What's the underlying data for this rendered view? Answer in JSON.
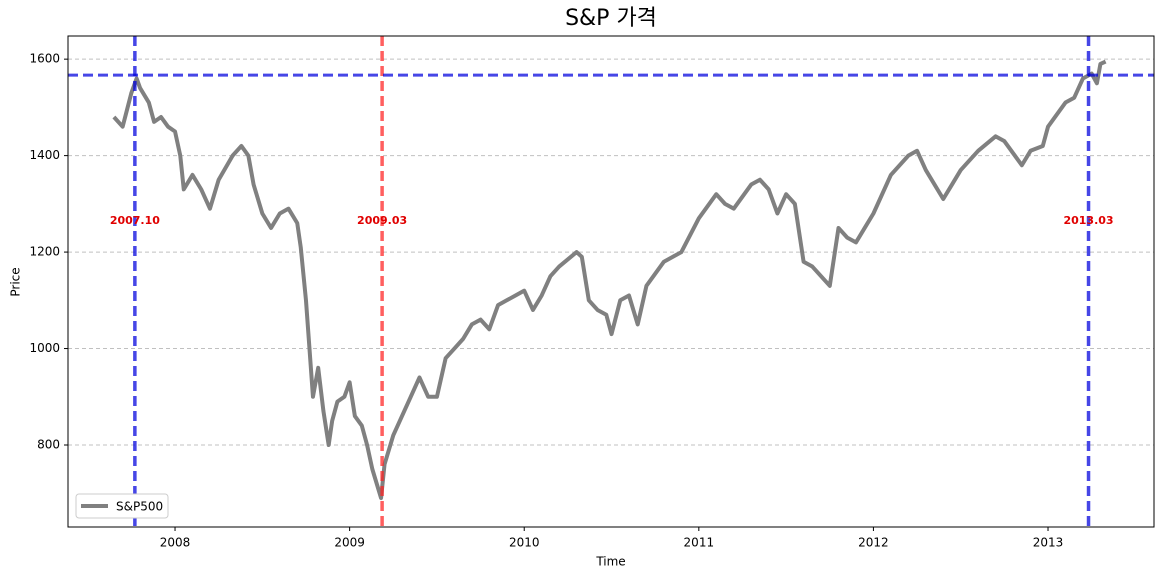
{
  "chart_data": {
    "type": "line",
    "title": "S&P 가격",
    "x_label": "Time",
    "y_label": "Price",
    "series": [
      {
        "name": "S&P500",
        "color": "#808080",
        "x": [
          2007.65,
          2007.7,
          2007.75,
          2007.78,
          2007.8,
          2007.85,
          2007.88,
          2007.92,
          2007.96,
          2008.0,
          2008.03,
          2008.05,
          2008.1,
          2008.15,
          2008.2,
          2008.25,
          2008.33,
          2008.38,
          2008.42,
          2008.45,
          2008.5,
          2008.55,
          2008.6,
          2008.65,
          2008.7,
          2008.72,
          2008.75,
          2008.77,
          2008.79,
          2008.82,
          2008.85,
          2008.88,
          2008.9,
          2008.93,
          2008.97,
          2009.0,
          2009.03,
          2009.07,
          2009.1,
          2009.13,
          2009.18,
          2009.2,
          2009.25,
          2009.3,
          2009.35,
          2009.4,
          2009.45,
          2009.5,
          2009.55,
          2009.6,
          2009.65,
          2009.7,
          2009.75,
          2009.8,
          2009.85,
          2009.9,
          2009.95,
          2010.0,
          2010.05,
          2010.1,
          2010.15,
          2010.2,
          2010.3,
          2010.33,
          2010.37,
          2010.42,
          2010.47,
          2010.5,
          2010.55,
          2010.6,
          2010.65,
          2010.7,
          2010.8,
          2010.9,
          2011.0,
          2011.1,
          2011.15,
          2011.2,
          2011.3,
          2011.35,
          2011.4,
          2011.45,
          2011.5,
          2011.55,
          2011.6,
          2011.65,
          2011.7,
          2011.75,
          2011.8,
          2011.85,
          2011.9,
          2011.95,
          2012.0,
          2012.1,
          2012.2,
          2012.25,
          2012.3,
          2012.4,
          2012.45,
          2012.5,
          2012.6,
          2012.7,
          2012.75,
          2012.85,
          2012.9,
          2012.97,
          2013.0,
          2013.1,
          2013.15,
          2013.2,
          2013.25,
          2013.28,
          2013.3,
          2013.33
        ],
        "values": [
          1480,
          1460,
          1530,
          1560,
          1540,
          1510,
          1470,
          1480,
          1460,
          1450,
          1400,
          1330,
          1360,
          1330,
          1290,
          1350,
          1400,
          1420,
          1400,
          1340,
          1280,
          1250,
          1280,
          1290,
          1260,
          1210,
          1100,
          1000,
          900,
          960,
          870,
          800,
          850,
          890,
          900,
          930,
          860,
          840,
          800,
          750,
          690,
          760,
          820,
          860,
          900,
          940,
          900,
          900,
          980,
          1000,
          1020,
          1050,
          1060,
          1040,
          1090,
          1100,
          1110,
          1120,
          1080,
          1110,
          1150,
          1170,
          1200,
          1190,
          1100,
          1080,
          1070,
          1030,
          1100,
          1110,
          1050,
          1130,
          1180,
          1200,
          1270,
          1320,
          1300,
          1290,
          1340,
          1350,
          1330,
          1280,
          1320,
          1300,
          1180,
          1170,
          1150,
          1130,
          1250,
          1230,
          1220,
          1250,
          1280,
          1360,
          1400,
          1410,
          1370,
          1310,
          1340,
          1370,
          1410,
          1440,
          1430,
          1380,
          1410,
          1420,
          1460,
          1510,
          1520,
          1560,
          1570,
          1550,
          1590,
          1595
        ]
      }
    ],
    "vlines": [
      {
        "x": 2007.77,
        "label": "2007.10",
        "color": "#0000dd"
      },
      {
        "x": 2009.186,
        "label": "2009.03",
        "color": "#ff2222"
      },
      {
        "x": 2013.232,
        "label": "2013.03",
        "color": "#0000dd"
      }
    ],
    "hline": {
      "y": 1567,
      "color": "#0000dd"
    },
    "xlim": [
      2007.387,
      2013.607
    ],
    "xticks": [
      2008,
      2009,
      2010,
      2011,
      2012,
      2013
    ],
    "ylim": [
      630,
      1648
    ],
    "yticks": [
      800,
      1000,
      1200,
      1400,
      1600
    ],
    "grid": true,
    "legend": "lower left"
  }
}
